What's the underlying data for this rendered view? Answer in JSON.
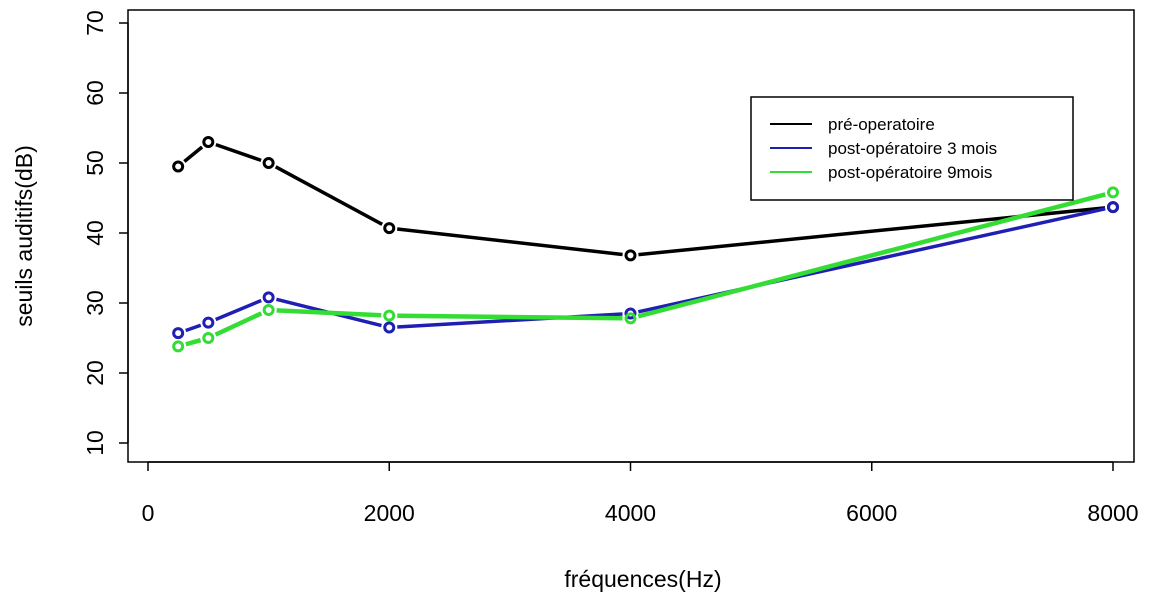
{
  "chart_data": {
    "type": "line",
    "title": "",
    "xlabel": "fréquences(Hz)",
    "ylabel": "seuils auditifs(dB)",
    "xlim": [
      0,
      8000
    ],
    "ylim": [
      10,
      70
    ],
    "x_ticks": [
      0,
      2000,
      4000,
      6000,
      8000
    ],
    "y_ticks": [
      10,
      20,
      30,
      40,
      50,
      60,
      70
    ],
    "grid": false,
    "legend_position": "top-right",
    "x": [
      250,
      500,
      1000,
      2000,
      4000,
      8000
    ],
    "series": [
      {
        "name": "pré-operatoire",
        "color": "#000000",
        "values": [
          49.5,
          53.0,
          50.0,
          40.7,
          36.8,
          43.7
        ]
      },
      {
        "name": "post-opératoire 3 mois",
        "color": "#1f1fb4",
        "values": [
          25.7,
          27.2,
          30.8,
          26.5,
          28.5,
          43.7
        ]
      },
      {
        "name": "post-opératoire 9mois",
        "color": "#33dd33",
        "values": [
          23.8,
          25.0,
          29.0,
          28.2,
          27.8,
          45.8
        ]
      }
    ]
  }
}
